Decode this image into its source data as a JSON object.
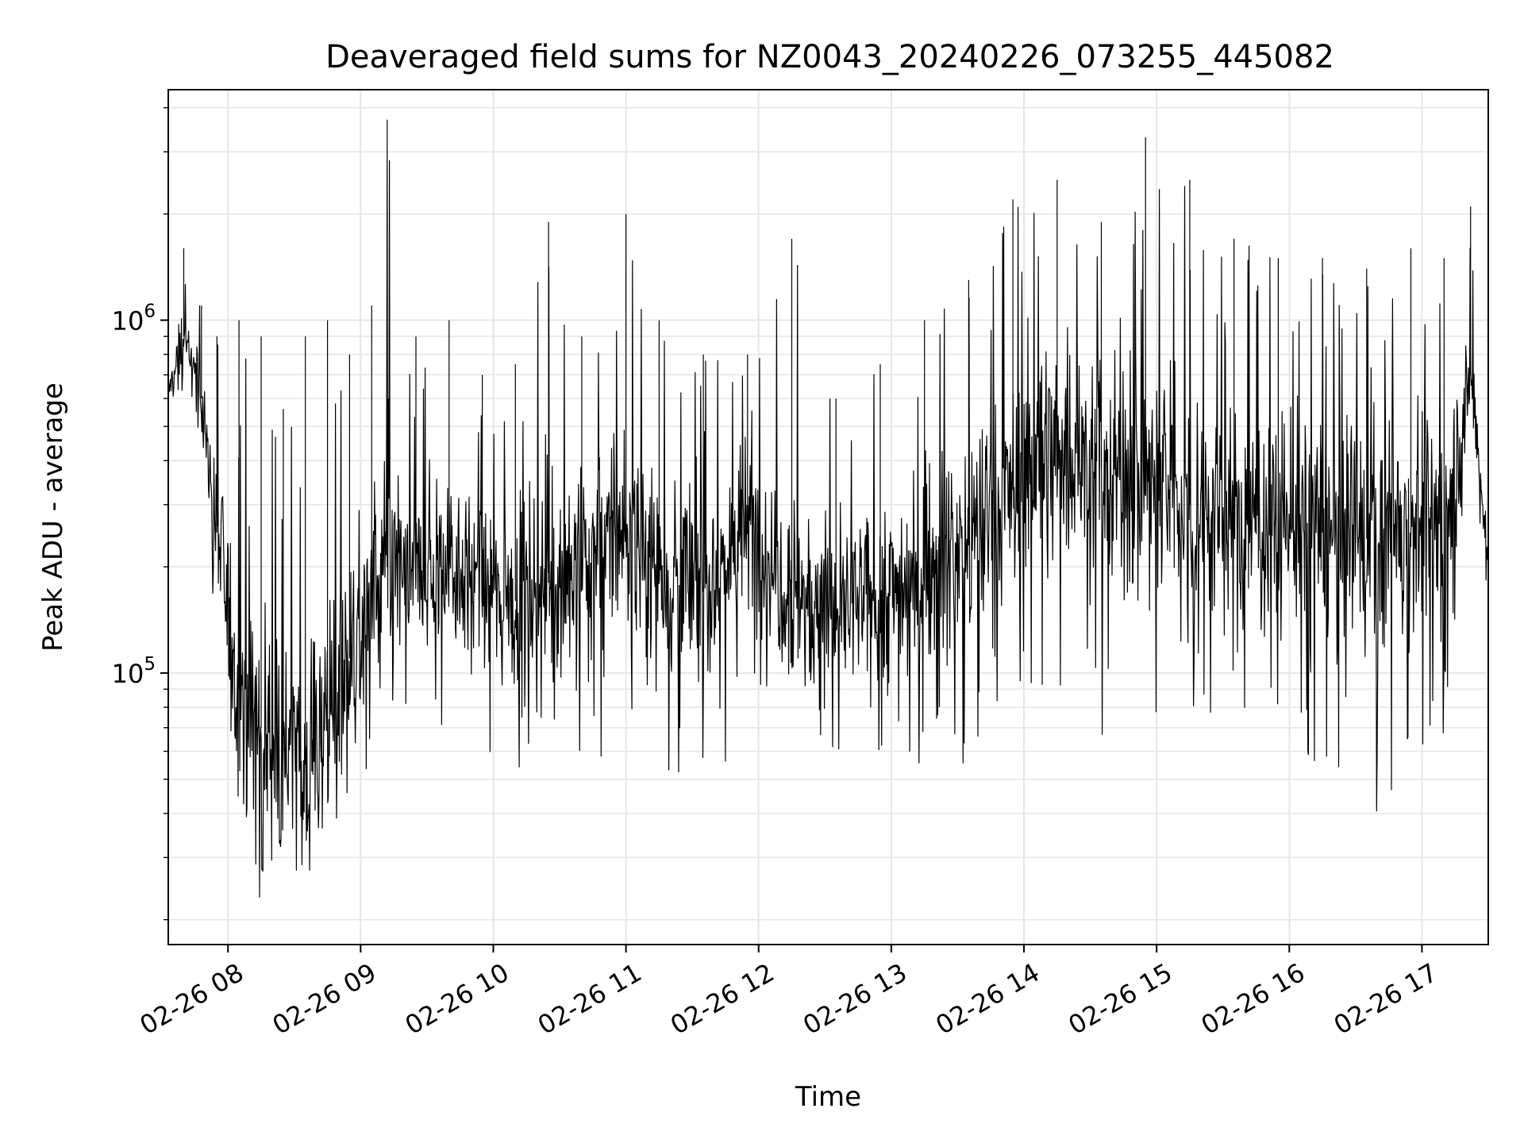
{
  "chart_data": {
    "type": "line",
    "title": "Deaveraged field sums for NZ0043_20240226_073255_445082",
    "xlabel": "Time",
    "ylabel": "Peak ADU - average",
    "yscale": "log",
    "xlim": [
      "02-26 07:33",
      "02-26 17:30"
    ],
    "ylim": [
      17000,
      4500000
    ],
    "grid": true,
    "x_ticks": [
      "02-26 08",
      "02-26 09",
      "02-26 10",
      "02-26 11",
      "02-26 12",
      "02-26 13",
      "02-26 14",
      "02-26 15",
      "02-26 16",
      "02-26 17"
    ],
    "y_ticks": [
      {
        "base": "10",
        "exp": "5",
        "value": 100000
      },
      {
        "base": "10",
        "exp": "6",
        "value": 1000000
      }
    ],
    "colors": {
      "line": "#000000",
      "grid": "#e6e6e6",
      "axes": "#000000"
    },
    "series": [
      {
        "envelope": [
          {
            "x": "02-26 07:33",
            "median": 620000,
            "high": 850000,
            "low": 560000
          },
          {
            "x": "02-26 07:40",
            "median": 900000,
            "high": 1600000,
            "low": 600000
          },
          {
            "x": "02-26 07:48",
            "median": 600000,
            "high": 1100000,
            "low": 450000
          },
          {
            "x": "02-26 07:55",
            "median": 250000,
            "high": 900000,
            "low": 100000
          },
          {
            "x": "02-26 08:05",
            "median": 90000,
            "high": 1000000,
            "low": 28000
          },
          {
            "x": "02-26 08:15",
            "median": 70000,
            "high": 900000,
            "low": 22000
          },
          {
            "x": "02-26 08:25",
            "median": 60000,
            "high": 560000,
            "low": 30000
          },
          {
            "x": "02-26 08:35",
            "median": 55000,
            "high": 900000,
            "low": 26000
          },
          {
            "x": "02-26 08:45",
            "median": 80000,
            "high": 1000000,
            "low": 35000
          },
          {
            "x": "02-26 08:55",
            "median": 110000,
            "high": 800000,
            "low": 40000
          },
          {
            "x": "02-26 09:05",
            "median": 160000,
            "high": 1100000,
            "low": 50000
          },
          {
            "x": "02-26 09:12",
            "median": 200000,
            "high": 3700000,
            "low": 60000
          },
          {
            "x": "02-26 09:25",
            "median": 180000,
            "high": 900000,
            "low": 70000
          },
          {
            "x": "02-26 09:40",
            "median": 220000,
            "high": 1000000,
            "low": 65000
          },
          {
            "x": "02-26 09:55",
            "median": 170000,
            "high": 700000,
            "low": 60000
          },
          {
            "x": "02-26 10:10",
            "median": 160000,
            "high": 750000,
            "low": 50000
          },
          {
            "x": "02-26 10:25",
            "median": 180000,
            "high": 1900000,
            "low": 60000
          },
          {
            "x": "02-26 10:40",
            "median": 200000,
            "high": 900000,
            "low": 55000
          },
          {
            "x": "02-26 11:00",
            "median": 260000,
            "high": 2000000,
            "low": 60000
          },
          {
            "x": "02-26 11:15",
            "median": 200000,
            "high": 1000000,
            "low": 55000
          },
          {
            "x": "02-26 11:35",
            "median": 170000,
            "high": 800000,
            "low": 42000
          },
          {
            "x": "02-26 11:55",
            "median": 260000,
            "high": 800000,
            "low": 60000
          },
          {
            "x": "02-26 12:15",
            "median": 180000,
            "high": 1700000,
            "low": 70000
          },
          {
            "x": "02-26 12:35",
            "median": 150000,
            "high": 600000,
            "low": 60000
          },
          {
            "x": "02-26 12:55",
            "median": 160000,
            "high": 750000,
            "low": 50000
          },
          {
            "x": "02-26 13:15",
            "median": 200000,
            "high": 1000000,
            "low": 55000
          },
          {
            "x": "02-26 13:35",
            "median": 230000,
            "high": 1300000,
            "low": 55000
          },
          {
            "x": "02-26 13:55",
            "median": 330000,
            "high": 2200000,
            "low": 80000
          },
          {
            "x": "02-26 14:15",
            "median": 450000,
            "high": 2500000,
            "low": 70000
          },
          {
            "x": "02-26 14:35",
            "median": 380000,
            "high": 1900000,
            "low": 65000
          },
          {
            "x": "02-26 14:55",
            "median": 350000,
            "high": 3300000,
            "low": 60000
          },
          {
            "x": "02-26 15:15",
            "median": 300000,
            "high": 2500000,
            "low": 70000
          },
          {
            "x": "02-26 15:35",
            "median": 260000,
            "high": 1700000,
            "low": 60000
          },
          {
            "x": "02-26 15:55",
            "median": 280000,
            "high": 1500000,
            "low": 50000
          },
          {
            "x": "02-26 16:15",
            "median": 250000,
            "high": 1500000,
            "low": 55000
          },
          {
            "x": "02-26 16:35",
            "median": 240000,
            "high": 1400000,
            "low": 38000
          },
          {
            "x": "02-26 16:55",
            "median": 270000,
            "high": 1600000,
            "low": 50000
          },
          {
            "x": "02-26 17:10",
            "median": 250000,
            "high": 1500000,
            "low": 60000
          },
          {
            "x": "02-26 17:22",
            "median": 700000,
            "high": 2100000,
            "low": 500000
          },
          {
            "x": "02-26 17:30",
            "median": 200000,
            "high": 600000,
            "low": 150000
          }
        ]
      }
    ]
  }
}
